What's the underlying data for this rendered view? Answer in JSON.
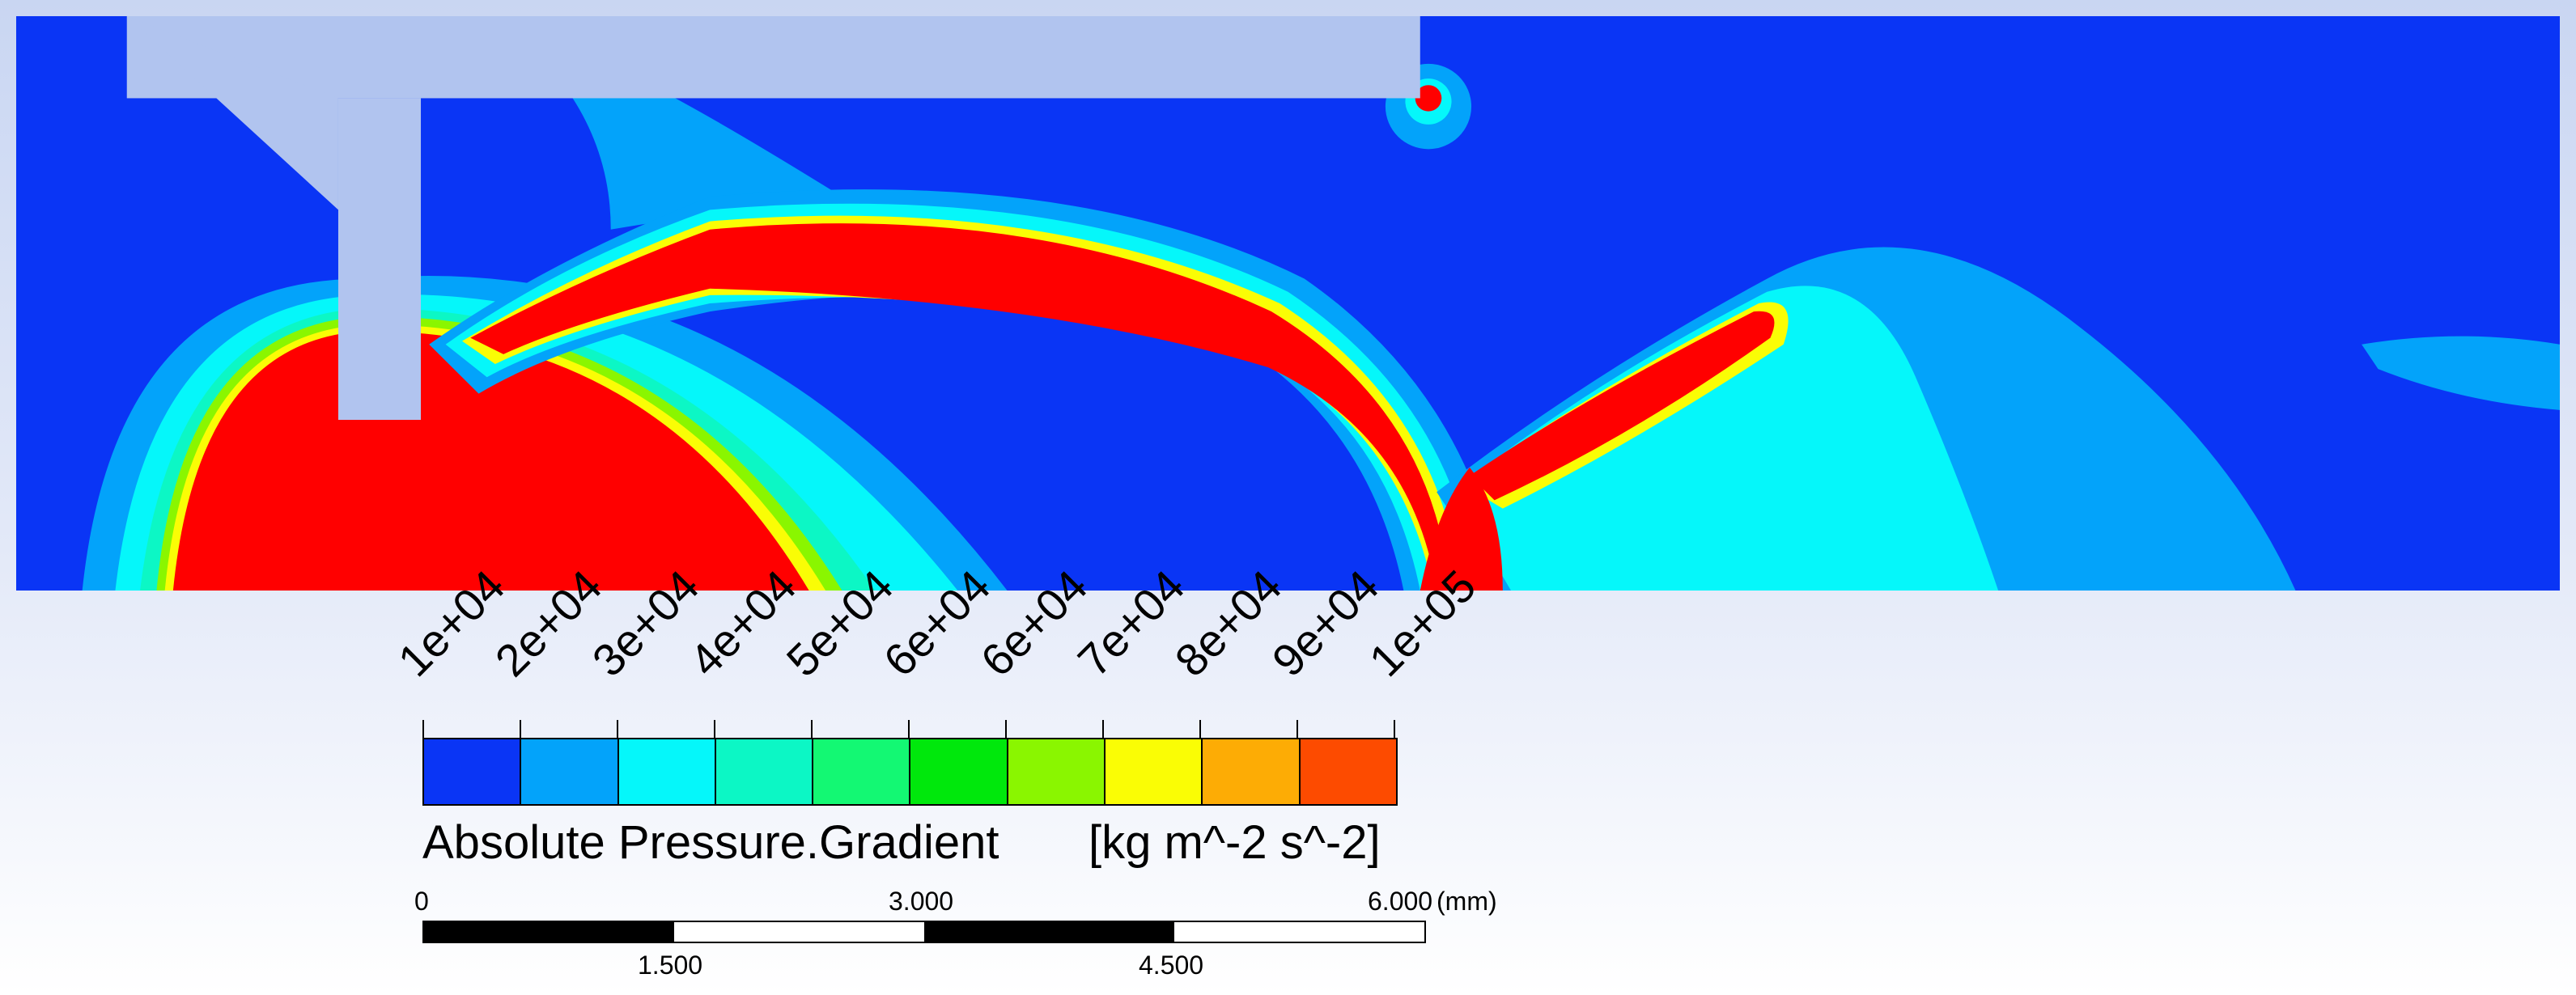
{
  "legend": {
    "title": "Absolute Pressure.Gradient",
    "units": "[kg m^-2 s^-2]",
    "ticks": [
      "1e+04",
      "2e+04",
      "3e+04",
      "4e+04",
      "5e+04",
      "6e+04",
      "6e+04",
      "7e+04",
      "8e+04",
      "9e+04",
      "1e+05"
    ],
    "colors": [
      "#0a35f5",
      "#03a3fa",
      "#05f7fa",
      "#0cf7c5",
      "#13f873",
      "#00e80c",
      "#8af600",
      "#fafd05",
      "#fdac05",
      "#fd4b00"
    ]
  },
  "scale_bar": {
    "top_labels": [
      "0",
      "3.000",
      "6.000"
    ],
    "unit": "(mm)",
    "bottom_labels": [
      "1.500",
      "4.500"
    ]
  },
  "field_colors": {
    "background": "#0a35f5",
    "high": "#ff0000",
    "geometry": "#b1c4ef"
  }
}
